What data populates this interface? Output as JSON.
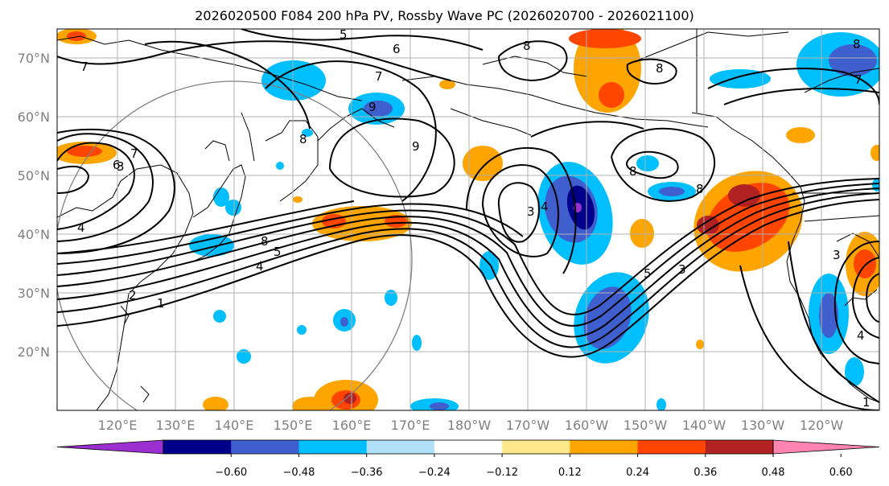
{
  "title": "2026020500 F084 200 hPa PV, Rossby Wave PC (2026020700 - 2026021100)",
  "lat_labels": [
    "70°N",
    "60°N",
    "50°N",
    "40°N",
    "30°N",
    "20°N"
  ],
  "lon_labels": [
    "120°E",
    "130°E",
    "140°E",
    "150°E",
    "160°E",
    "170°E",
    "180°W",
    "170°W",
    "160°W",
    "150°W",
    "140°W",
    "130°W",
    "120°W"
  ],
  "contour_labels": [
    "5",
    "6",
    "7",
    "7",
    "8",
    "8",
    "8",
    "8",
    "8",
    "9",
    "9",
    "7",
    "6",
    "5",
    "4",
    "3",
    "2",
    "1",
    "3",
    "4",
    "4",
    "3",
    "5",
    "8",
    "3",
    "4",
    "1",
    "7",
    "8"
  ],
  "colorbar": {
    "levels": [
      "−0.60",
      "−0.48",
      "−0.36",
      "−0.24",
      "−0.12",
      "0.12",
      "0.24",
      "0.36",
      "0.48",
      "0.60"
    ],
    "colors": [
      "#9b30d0",
      "#00008b",
      "#3f5fcf",
      "#00bfff",
      "#b0e0f8",
      "#ffffff",
      "#ffe88a",
      "#ffa500",
      "#ff4500",
      "#b22222",
      "#ff85b0"
    ]
  },
  "colors": {
    "grid": "#b0b0b0",
    "coast": "#000000",
    "contour": "#000000",
    "circle": "#808080"
  }
}
